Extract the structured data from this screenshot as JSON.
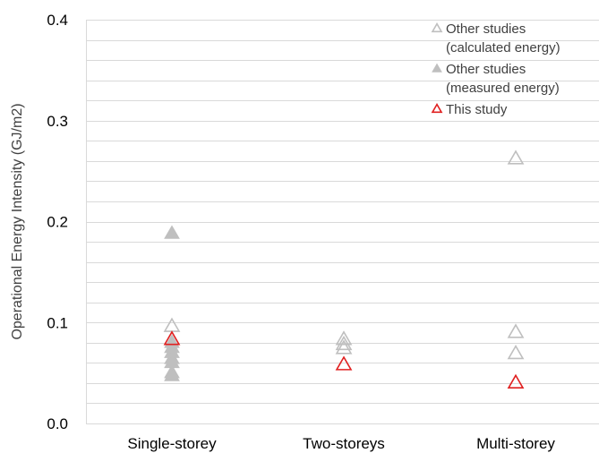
{
  "chart_data": {
    "type": "scatter",
    "ylabel": "Operational Energy Intensity (GJ/m2)",
    "xlabel": "",
    "categories": [
      "Single-storey",
      "Two-storeys",
      "Multi-storey"
    ],
    "ylim": [
      0,
      0.4
    ],
    "yticks": [
      "0.0",
      "0.1",
      "0.2",
      "0.3",
      "0.4"
    ],
    "grid": true,
    "legend_position": "top-right",
    "series": [
      {
        "name": "Other studies (calculated energy)",
        "legend_lines": [
          "Other studies",
          "(calculated energy)"
        ],
        "marker": "open-triangle",
        "color": "#bfbfbf",
        "points": [
          {
            "category": "Single-storey",
            "y": 0.096
          },
          {
            "category": "Two-storeys",
            "y": 0.083
          },
          {
            "category": "Two-storeys",
            "y": 0.078
          },
          {
            "category": "Two-storeys",
            "y": 0.074
          },
          {
            "category": "Multi-storey",
            "y": 0.262
          },
          {
            "category": "Multi-storey",
            "y": 0.09
          },
          {
            "category": "Multi-storey",
            "y": 0.069
          }
        ]
      },
      {
        "name": "Other studies (measured energy)",
        "legend_lines": [
          "Other studies",
          "(measured energy)"
        ],
        "marker": "filled-triangle",
        "color": "#bfbfbf",
        "points": [
          {
            "category": "Single-storey",
            "y": 0.188
          },
          {
            "category": "Single-storey",
            "y": 0.08
          },
          {
            "category": "Single-storey",
            "y": 0.075
          },
          {
            "category": "Single-storey",
            "y": 0.07
          },
          {
            "category": "Single-storey",
            "y": 0.064
          },
          {
            "category": "Single-storey",
            "y": 0.06
          },
          {
            "category": "Single-storey",
            "y": 0.05
          },
          {
            "category": "Single-storey",
            "y": 0.047
          }
        ]
      },
      {
        "name": "This study",
        "legend_lines": [
          "This study"
        ],
        "marker": "open-triangle",
        "color": "#e02020",
        "points": [
          {
            "category": "Single-storey",
            "y": 0.083
          },
          {
            "category": "Two-storeys",
            "y": 0.058
          },
          {
            "category": "Multi-storey",
            "y": 0.04
          }
        ]
      }
    ],
    "colors": {
      "grid": "#d9d9d9",
      "axis": "#d9d9d9",
      "text": "#000000"
    }
  }
}
